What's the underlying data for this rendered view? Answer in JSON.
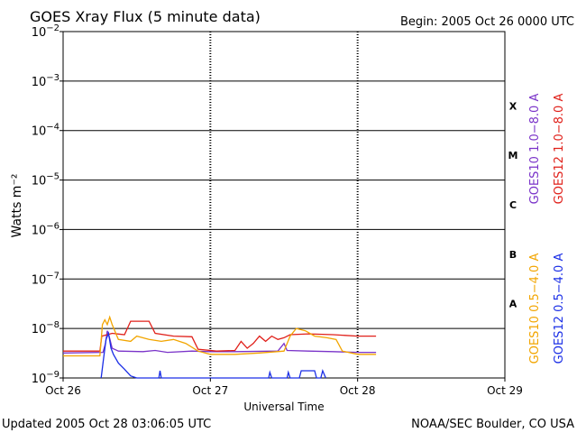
{
  "header": {
    "title": "GOES Xray Flux (5 minute data)",
    "begin": "Begin:  2005 Oct 26 0000 UTC"
  },
  "footer": {
    "updated": "Updated 2005 Oct 28 03:06:05 UTC",
    "credit": "NOAA/SEC Boulder, CO USA"
  },
  "chart_data": {
    "type": "line",
    "title": "GOES Xray Flux (5 minute data)",
    "xlabel": "Universal Time",
    "ylabel": "Watts m⁻²",
    "yscale": "log",
    "ylim": [
      1e-09,
      0.01
    ],
    "xlim": [
      0,
      72
    ],
    "x_unit": "hours since 2005 Oct 26 0000 UTC",
    "x_ticks": [
      {
        "x": 0,
        "label": "Oct 26"
      },
      {
        "x": 24,
        "label": "Oct 27"
      },
      {
        "x": 48,
        "label": "Oct 28"
      },
      {
        "x": 72,
        "label": "Oct 29"
      }
    ],
    "y_ticks": [
      {
        "exp": -2,
        "base": "10",
        "sup": "−2"
      },
      {
        "exp": -3,
        "base": "10",
        "sup": "−3"
      },
      {
        "exp": -4,
        "base": "10",
        "sup": "−4"
      },
      {
        "exp": -5,
        "base": "10",
        "sup": "−5"
      },
      {
        "exp": -6,
        "base": "10",
        "sup": "−6"
      },
      {
        "exp": -7,
        "base": "10",
        "sup": "−7"
      },
      {
        "exp": -8,
        "base": "10",
        "sup": "−8"
      },
      {
        "exp": -9,
        "base": "10",
        "sup": "−9"
      }
    ],
    "flare_classes": [
      {
        "label": "X",
        "exp": -3.5
      },
      {
        "label": "M",
        "exp": -4.5
      },
      {
        "label": "C",
        "exp": -5.5
      },
      {
        "label": "B",
        "exp": -6.5
      },
      {
        "label": "A",
        "exp": -7.5
      }
    ],
    "grid": "horizontal lines at each decade; dotted vertical lines at day boundaries",
    "legend": [
      {
        "name": "GOES10 1.0−8.0 A",
        "color": "#7a33c9"
      },
      {
        "name": "GOES12 1.0−8.0 A",
        "color": "#e0201a"
      },
      {
        "name": "GOES10 0.5−4.0 A",
        "color": "#f2a500"
      },
      {
        "name": "GOES12 0.5−4.0 A",
        "color": "#1a2ee6"
      }
    ],
    "series": [
      {
        "name": "GOES10 1.0−8.0 A",
        "color": "#7a33c9",
        "points": [
          [
            0,
            3.2e-09
          ],
          [
            6.5,
            3.3e-09
          ],
          [
            6.9,
            5e-09
          ],
          [
            7.2,
            9e-09
          ],
          [
            7.5,
            7e-09
          ],
          [
            8,
            4e-09
          ],
          [
            9,
            3.5e-09
          ],
          [
            13,
            3.4e-09
          ],
          [
            15,
            3.6e-09
          ],
          [
            17,
            3.3e-09
          ],
          [
            21,
            3.5e-09
          ],
          [
            24,
            3.4e-09
          ],
          [
            28,
            3.4e-09
          ],
          [
            35,
            3.5e-09
          ],
          [
            36,
            5e-09
          ],
          [
            36.5,
            3.6e-09
          ],
          [
            40,
            3.5e-09
          ],
          [
            44,
            3.4e-09
          ],
          [
            48,
            3.3e-09
          ],
          [
            51,
            3.3e-09
          ]
        ]
      },
      {
        "name": "GOES12 1.0−8.0 A",
        "color": "#e0201a",
        "points": [
          [
            0,
            3.5e-09
          ],
          [
            6,
            3.5e-09
          ],
          [
            6.3,
            7e-09
          ],
          [
            8,
            8e-09
          ],
          [
            10,
            7.5e-09
          ],
          [
            11,
            1.4e-08
          ],
          [
            14,
            1.4e-08
          ],
          [
            15,
            8e-09
          ],
          [
            18,
            7e-09
          ],
          [
            21,
            6.8e-09
          ],
          [
            22,
            3.8e-09
          ],
          [
            25,
            3.5e-09
          ],
          [
            28,
            3.6e-09
          ],
          [
            29,
            5.5e-09
          ],
          [
            30,
            4e-09
          ],
          [
            31,
            5e-09
          ],
          [
            32,
            7e-09
          ],
          [
            33,
            5.5e-09
          ],
          [
            34,
            7e-09
          ],
          [
            35,
            6e-09
          ],
          [
            36,
            6.5e-09
          ],
          [
            37,
            7.5e-09
          ],
          [
            40,
            7.8e-09
          ],
          [
            44,
            7.5e-09
          ],
          [
            48,
            7e-09
          ],
          [
            51,
            7e-09
          ]
        ]
      },
      {
        "name": "GOES10 0.5−4.0 A",
        "color": "#f2a500",
        "points": [
          [
            0,
            2.8e-09
          ],
          [
            6,
            2.8e-09
          ],
          [
            6.4,
            1.2e-08
          ],
          [
            6.8,
            1.5e-08
          ],
          [
            7.2,
            1.2e-08
          ],
          [
            7.6,
            1.7e-08
          ],
          [
            8,
            1.2e-08
          ],
          [
            9,
            6e-09
          ],
          [
            11,
            5.5e-09
          ],
          [
            12,
            7e-09
          ],
          [
            14,
            6e-09
          ],
          [
            16,
            5.5e-09
          ],
          [
            18,
            6e-09
          ],
          [
            20,
            5e-09
          ],
          [
            22,
            3.5e-09
          ],
          [
            24,
            3e-09
          ],
          [
            28,
            3e-09
          ],
          [
            32,
            3.2e-09
          ],
          [
            36,
            3.5e-09
          ],
          [
            37,
            7e-09
          ],
          [
            38,
            1e-08
          ],
          [
            39.5,
            9e-09
          ],
          [
            41,
            7e-09
          ],
          [
            43,
            6.5e-09
          ],
          [
            44.5,
            6e-09
          ],
          [
            45.5,
            3.5e-09
          ],
          [
            48,
            3e-09
          ],
          [
            51,
            3e-09
          ]
        ]
      },
      {
        "name": "GOES12 0.5−4.0 A",
        "color": "#1a2ee6",
        "points": [
          [
            6.2,
            1e-09
          ],
          [
            6.6,
            2.5e-09
          ],
          [
            7,
            6e-09
          ],
          [
            7.4,
            8e-09
          ],
          [
            7.8,
            4e-09
          ],
          [
            8.2,
            3e-09
          ],
          [
            9,
            2e-09
          ],
          [
            10,
            1.5e-09
          ],
          [
            11,
            1.1e-09
          ],
          [
            12,
            1e-09
          ],
          [
            15.6,
            1e-09
          ],
          [
            15.8,
            1.4e-09
          ],
          [
            16,
            1e-09
          ],
          [
            33.5,
            1e-09
          ],
          [
            33.7,
            1.3e-09
          ],
          [
            34,
            1e-09
          ],
          [
            36.5,
            1e-09
          ],
          [
            36.7,
            1.3e-09
          ],
          [
            37,
            1e-09
          ],
          [
            38.5,
            1e-09
          ],
          [
            38.8,
            1.4e-09
          ],
          [
            41,
            1.4e-09
          ],
          [
            41.3,
            1e-09
          ],
          [
            42,
            1e-09
          ],
          [
            42.3,
            1.4e-09
          ],
          [
            42.8,
            1e-09
          ]
        ]
      }
    ]
  }
}
